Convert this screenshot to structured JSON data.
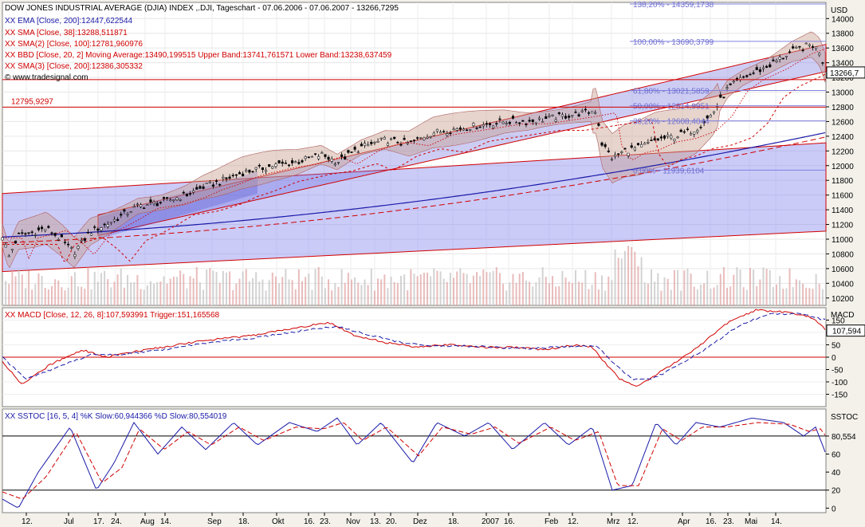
{
  "header": {
    "title": "DOW JONES INDUSTRIAL AVERAGE (DJIA) INDEX ,.DJI, Tageschart - 07.06.2006 - 07.06.2007 - 13266,7295",
    "currency": "USD",
    "copyright": "© www.tradesignal.com"
  },
  "indicators_main": [
    {
      "text": "XX EMA [Close, 200]:12447,622544",
      "color": "#1a1aa8"
    },
    {
      "text": "XX SMA [Close, 38]:13288,511871",
      "color": "#d00000"
    },
    {
      "text": "XX SMA(2) [Close, 100]:12781,960976",
      "color": "#d00000"
    },
    {
      "text": "XX BBD [Close, 20, 2] Moving Average:13490,199515 Upper Band:13741,761571 Lower Band:13238,637459",
      "color": "#d00000"
    },
    {
      "text": "XX SMA(3) [Close, 200]:12386,305332",
      "color": "#d00000"
    }
  ],
  "chart_data": [
    {
      "type": "line",
      "panel": "price",
      "y_ticks": [
        10200,
        10400,
        10600,
        10800,
        11000,
        11200,
        11400,
        11600,
        11800,
        12000,
        12200,
        12400,
        12600,
        12800,
        13000,
        13200,
        13400,
        13600,
        13800,
        14000
      ],
      "ylim": [
        10100,
        14220
      ],
      "last_price_label": "13266,7",
      "fibonacci": [
        {
          "label": "138,20% - 14359,1738",
          "value": 14359.1738
        },
        {
          "label": "100,00% - 13690,3799",
          "value": 13690.3799
        },
        {
          "label": "61,80% - 13021,5859",
          "value": 13021.5859
        },
        {
          "label": "50,00% - 12814,9951",
          "value": 12814.9951
        },
        {
          "label": "38,20% - 12608,4044",
          "value": 12608.4044
        },
        {
          "label": "0,00% - 11939,6104",
          "value": 11939.6104
        }
      ],
      "horizontal_lines": [
        {
          "label": "12795,9297",
          "value": 12795.9297
        },
        {
          "label": "",
          "value": 13170
        }
      ],
      "close_keypoints": [
        {
          "t": 0,
          "v": 11050
        },
        {
          "t": 8,
          "v": 10760
        },
        {
          "t": 20,
          "v": 11050
        },
        {
          "t": 40,
          "v": 11100
        },
        {
          "t": 55,
          "v": 11150
        },
        {
          "t": 75,
          "v": 10980
        },
        {
          "t": 90,
          "v": 10820
        },
        {
          "t": 110,
          "v": 11100
        },
        {
          "t": 130,
          "v": 11200
        },
        {
          "t": 150,
          "v": 11320
        },
        {
          "t": 170,
          "v": 11450
        },
        {
          "t": 200,
          "v": 11500
        },
        {
          "t": 230,
          "v": 11600
        },
        {
          "t": 250,
          "v": 11700
        },
        {
          "t": 270,
          "v": 11770
        },
        {
          "t": 300,
          "v": 11900
        },
        {
          "t": 340,
          "v": 12000
        },
        {
          "t": 370,
          "v": 12050
        },
        {
          "t": 400,
          "v": 12150
        },
        {
          "t": 420,
          "v": 12050
        },
        {
          "t": 450,
          "v": 12250
        },
        {
          "t": 480,
          "v": 12350
        },
        {
          "t": 510,
          "v": 12300
        },
        {
          "t": 540,
          "v": 12450
        },
        {
          "t": 570,
          "v": 12500
        },
        {
          "t": 600,
          "v": 12550
        },
        {
          "t": 630,
          "v": 12600
        },
        {
          "t": 660,
          "v": 12600
        },
        {
          "t": 690,
          "v": 12650
        },
        {
          "t": 720,
          "v": 12700
        },
        {
          "t": 745,
          "v": 12750
        },
        {
          "t": 752,
          "v": 12300
        },
        {
          "t": 765,
          "v": 12100
        },
        {
          "t": 780,
          "v": 12200
        },
        {
          "t": 800,
          "v": 12250
        },
        {
          "t": 820,
          "v": 12350
        },
        {
          "t": 845,
          "v": 12400
        },
        {
          "t": 870,
          "v": 12500
        },
        {
          "t": 890,
          "v": 12700
        },
        {
          "t": 910,
          "v": 13050
        },
        {
          "t": 930,
          "v": 13200
        },
        {
          "t": 960,
          "v": 13350
        },
        {
          "t": 990,
          "v": 13550
        },
        {
          "t": 1015,
          "v": 13650
        },
        {
          "t": 1025,
          "v": 13550
        },
        {
          "t": 1033,
          "v": 13300
        }
      ]
    },
    {
      "type": "line",
      "panel": "macd",
      "title": "XX MACD [Close, 12, 26, 8]:107,593991 Trigger:151,165568",
      "label": "MACD",
      "y_ticks": [
        -150,
        -100,
        -50,
        0,
        50,
        100,
        150
      ],
      "tick_labels": [
        "-150",
        "-100",
        "-50",
        "0",
        "50",
        "100",
        "150"
      ],
      "ylim": [
        -200,
        200
      ],
      "last_label": "107,594",
      "series": [
        {
          "color": "#d00000",
          "keypoints": [
            {
              "t": 0,
              "v": -20
            },
            {
              "t": 25,
              "v": -110
            },
            {
              "t": 60,
              "v": -30
            },
            {
              "t": 100,
              "v": 30
            },
            {
              "t": 130,
              "v": 0
            },
            {
              "t": 160,
              "v": 20
            },
            {
              "t": 200,
              "v": 40
            },
            {
              "t": 260,
              "v": 70
            },
            {
              "t": 320,
              "v": 90
            },
            {
              "t": 370,
              "v": 120
            },
            {
              "t": 410,
              "v": 140
            },
            {
              "t": 440,
              "v": 90
            },
            {
              "t": 480,
              "v": 60
            },
            {
              "t": 520,
              "v": 40
            },
            {
              "t": 560,
              "v": 50
            },
            {
              "t": 600,
              "v": 40
            },
            {
              "t": 640,
              "v": 40
            },
            {
              "t": 680,
              "v": 30
            },
            {
              "t": 720,
              "v": 50
            },
            {
              "t": 740,
              "v": 40
            },
            {
              "t": 755,
              "v": -20
            },
            {
              "t": 775,
              "v": -90
            },
            {
              "t": 795,
              "v": -120
            },
            {
              "t": 820,
              "v": -70
            },
            {
              "t": 850,
              "v": -10
            },
            {
              "t": 880,
              "v": 60
            },
            {
              "t": 910,
              "v": 140
            },
            {
              "t": 945,
              "v": 190
            },
            {
              "t": 990,
              "v": 180
            },
            {
              "t": 1015,
              "v": 160
            },
            {
              "t": 1033,
              "v": 110
            }
          ]
        },
        {
          "color": "#1a1aa8",
          "keypoints": [
            {
              "t": 0,
              "v": 0
            },
            {
              "t": 30,
              "v": -90
            },
            {
              "t": 70,
              "v": -40
            },
            {
              "t": 110,
              "v": 10
            },
            {
              "t": 150,
              "v": 10
            },
            {
              "t": 200,
              "v": 30
            },
            {
              "t": 260,
              "v": 60
            },
            {
              "t": 320,
              "v": 80
            },
            {
              "t": 380,
              "v": 110
            },
            {
              "t": 420,
              "v": 125
            },
            {
              "t": 460,
              "v": 90
            },
            {
              "t": 500,
              "v": 60
            },
            {
              "t": 540,
              "v": 45
            },
            {
              "t": 580,
              "v": 45
            },
            {
              "t": 620,
              "v": 40
            },
            {
              "t": 660,
              "v": 35
            },
            {
              "t": 700,
              "v": 40
            },
            {
              "t": 745,
              "v": 45
            },
            {
              "t": 765,
              "v": -20
            },
            {
              "t": 790,
              "v": -90
            },
            {
              "t": 815,
              "v": -90
            },
            {
              "t": 850,
              "v": -30
            },
            {
              "t": 885,
              "v": 40
            },
            {
              "t": 920,
              "v": 120
            },
            {
              "t": 960,
              "v": 175
            },
            {
              "t": 1000,
              "v": 175
            },
            {
              "t": 1033,
              "v": 150
            }
          ]
        }
      ]
    },
    {
      "type": "line",
      "panel": "sstoc",
      "title": "XX SSTOC [16, 5, 4] %K Slow:60,944366 %D Slow:80,554019",
      "label": "SSTOC",
      "y_ticks": [
        0,
        20,
        40,
        60,
        80
      ],
      "tick_labels": [
        "0",
        "20",
        "40",
        "60",
        "80,554"
      ],
      "ylim": [
        -5,
        110
      ],
      "reference_lines": [
        20,
        80
      ],
      "series": [
        {
          "color": "#1a1aa8",
          "keypoints": [
            {
              "t": 0,
              "v": 10
            },
            {
              "t": 20,
              "v": 0
            },
            {
              "t": 45,
              "v": 40
            },
            {
              "t": 85,
              "v": 90
            },
            {
              "t": 118,
              "v": 20
            },
            {
              "t": 140,
              "v": 50
            },
            {
              "t": 165,
              "v": 95
            },
            {
              "t": 195,
              "v": 60
            },
            {
              "t": 225,
              "v": 90
            },
            {
              "t": 255,
              "v": 65
            },
            {
              "t": 290,
              "v": 95
            },
            {
              "t": 320,
              "v": 70
            },
            {
              "t": 360,
              "v": 95
            },
            {
              "t": 395,
              "v": 85
            },
            {
              "t": 420,
              "v": 100
            },
            {
              "t": 445,
              "v": 70
            },
            {
              "t": 475,
              "v": 95
            },
            {
              "t": 515,
              "v": 50
            },
            {
              "t": 545,
              "v": 95
            },
            {
              "t": 580,
              "v": 80
            },
            {
              "t": 610,
              "v": 95
            },
            {
              "t": 640,
              "v": 65
            },
            {
              "t": 680,
              "v": 95
            },
            {
              "t": 710,
              "v": 70
            },
            {
              "t": 740,
              "v": 90
            },
            {
              "t": 765,
              "v": 20
            },
            {
              "t": 790,
              "v": 25
            },
            {
              "t": 820,
              "v": 95
            },
            {
              "t": 845,
              "v": 70
            },
            {
              "t": 870,
              "v": 95
            },
            {
              "t": 900,
              "v": 90
            },
            {
              "t": 940,
              "v": 100
            },
            {
              "t": 980,
              "v": 95
            },
            {
              "t": 1005,
              "v": 80
            },
            {
              "t": 1020,
              "v": 90
            },
            {
              "t": 1033,
              "v": 60
            }
          ]
        },
        {
          "color": "#d00000",
          "keypoints": [
            {
              "t": 0,
              "v": 18
            },
            {
              "t": 25,
              "v": 10
            },
            {
              "t": 55,
              "v": 35
            },
            {
              "t": 92,
              "v": 85
            },
            {
              "t": 125,
              "v": 28
            },
            {
              "t": 150,
              "v": 45
            },
            {
              "t": 172,
              "v": 88
            },
            {
              "t": 203,
              "v": 65
            },
            {
              "t": 233,
              "v": 85
            },
            {
              "t": 262,
              "v": 70
            },
            {
              "t": 297,
              "v": 90
            },
            {
              "t": 328,
              "v": 75
            },
            {
              "t": 368,
              "v": 90
            },
            {
              "t": 403,
              "v": 88
            },
            {
              "t": 428,
              "v": 95
            },
            {
              "t": 452,
              "v": 75
            },
            {
              "t": 482,
              "v": 90
            },
            {
              "t": 522,
              "v": 58
            },
            {
              "t": 552,
              "v": 90
            },
            {
              "t": 588,
              "v": 82
            },
            {
              "t": 618,
              "v": 90
            },
            {
              "t": 648,
              "v": 72
            },
            {
              "t": 688,
              "v": 90
            },
            {
              "t": 718,
              "v": 75
            },
            {
              "t": 748,
              "v": 85
            },
            {
              "t": 772,
              "v": 25
            },
            {
              "t": 798,
              "v": 25
            },
            {
              "t": 828,
              "v": 88
            },
            {
              "t": 852,
              "v": 75
            },
            {
              "t": 878,
              "v": 90
            },
            {
              "t": 908,
              "v": 90
            },
            {
              "t": 948,
              "v": 95
            },
            {
              "t": 988,
              "v": 93
            },
            {
              "t": 1012,
              "v": 85
            },
            {
              "t": 1026,
              "v": 88
            },
            {
              "t": 1033,
              "v": 80
            }
          ]
        }
      ]
    }
  ],
  "x_axis": {
    "labels": [
      {
        "text": "12.",
        "t": 30
      },
      {
        "text": "Jul",
        "t": 83
      },
      {
        "text": "17.",
        "t": 120
      },
      {
        "text": "24.",
        "t": 142
      },
      {
        "text": "Aug",
        "t": 179
      },
      {
        "text": "14.",
        "t": 204
      },
      {
        "text": "Sep",
        "t": 263
      },
      {
        "text": "18.",
        "t": 302
      },
      {
        "text": "Okt",
        "t": 344
      },
      {
        "text": "16.",
        "t": 384
      },
      {
        "text": "23.",
        "t": 404
      },
      {
        "text": "Nov",
        "t": 437
      },
      {
        "text": "13.",
        "t": 467
      },
      {
        "text": "20.",
        "t": 487
      },
      {
        "text": "Dez",
        "t": 521
      },
      {
        "text": "18.",
        "t": 565
      },
      {
        "text": "2007",
        "t": 607
      },
      {
        "text": "16.",
        "t": 635
      },
      {
        "text": "Feb",
        "t": 686
      },
      {
        "text": "12.",
        "t": 715
      },
      {
        "text": "Mrz",
        "t": 764
      },
      {
        "text": "12.",
        "t": 790
      },
      {
        "text": "Apr",
        "t": 853
      },
      {
        "text": "16.",
        "t": 888
      },
      {
        "text": "23.",
        "t": 910
      },
      {
        "text": "Mai",
        "t": 937
      },
      {
        "text": "14.",
        "t": 970
      }
    ]
  }
}
